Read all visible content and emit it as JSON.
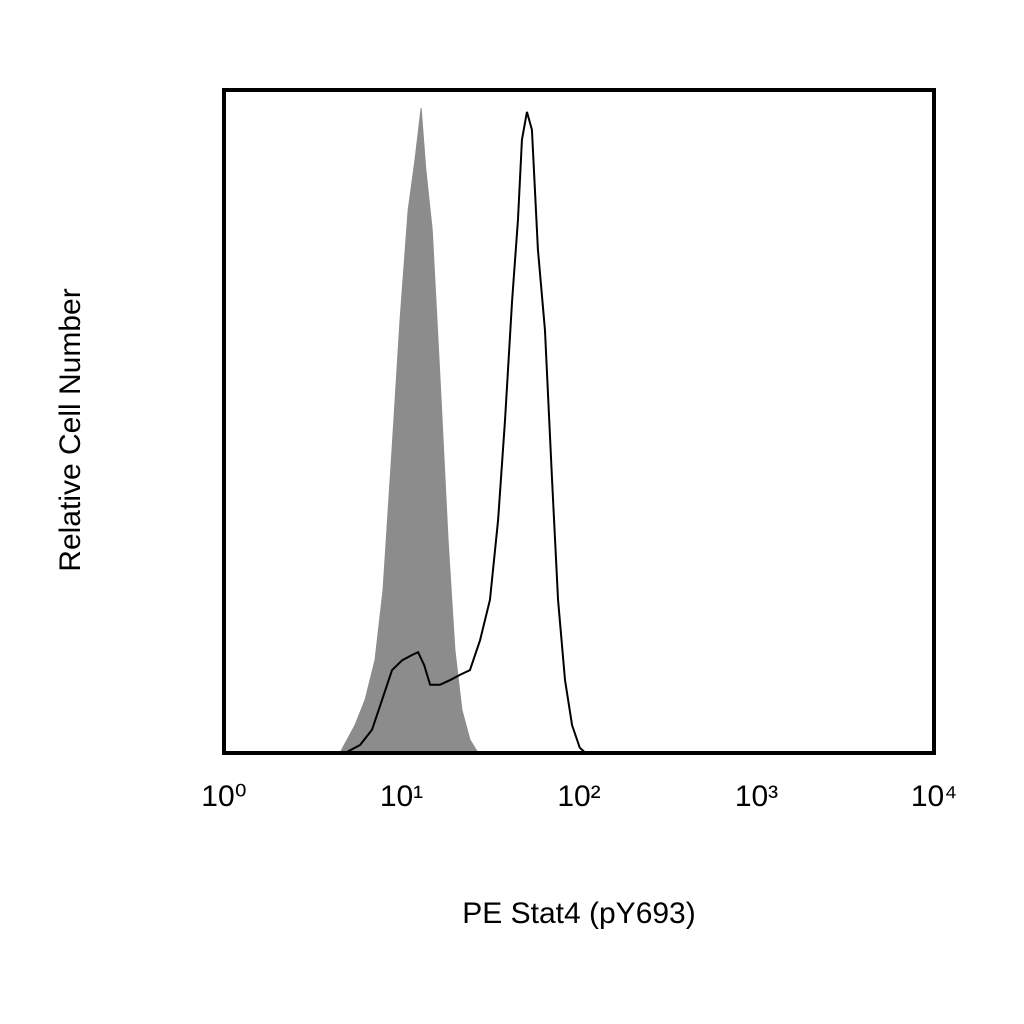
{
  "chart_data": {
    "type": "area",
    "xlabel": "PE Stat4 (pY693)",
    "ylabel": "Relative Cell Number",
    "xscale": "log",
    "xlim": [
      1,
      10000
    ],
    "xticks": [
      {
        "value": 1,
        "label": "10⁰"
      },
      {
        "value": 10,
        "label": "10¹"
      },
      {
        "value": 100,
        "label": "10²"
      },
      {
        "value": 1000,
        "label": "10³"
      },
      {
        "value": 10000,
        "label": "10⁴"
      }
    ],
    "ylim": [
      0,
      100
    ],
    "series": [
      {
        "color": "#8c8c8c",
        "filled": true,
        "x": [
          4.5,
          5.47,
          6.23,
          7.09,
          7.87,
          8.84,
          9.81,
          10.9,
          11.9,
          12.9,
          13.7,
          14.9,
          16.5,
          18.3,
          20.0,
          21.9,
          24.3,
          27.0
        ],
        "values": [
          0,
          4.2,
          8.0,
          14.0,
          24.6,
          45.7,
          65.3,
          81.9,
          89.4,
          97.3,
          88.1,
          78.9,
          56.3,
          32.1,
          15.5,
          6.5,
          2.0,
          0
        ]
      },
      {
        "color": "#000000",
        "filled": false,
        "x": [
          4.8,
          5.84,
          6.82,
          7.77,
          8.84,
          10.1,
          11.5,
          12.4,
          13.4,
          14.5,
          16.5,
          18.8,
          21.4,
          24.3,
          27.7,
          31.5,
          35.0,
          38.3,
          42.0,
          45.3,
          47.7,
          50.9,
          54.3,
          58.7,
          64.3,
          70.5,
          76.2,
          83.4,
          91.4,
          101,
          109
        ],
        "values": [
          0,
          1.2,
          3.5,
          8.0,
          12.5,
          14.0,
          14.8,
          15.2,
          13.3,
          10.3,
          10.3,
          11.0,
          11.8,
          12.5,
          17.0,
          23.1,
          35.1,
          50.2,
          68.3,
          80.4,
          92.5,
          96.7,
          94.0,
          75.9,
          63.8,
          41.2,
          23.1,
          11.0,
          4.2,
          0.8,
          0
        ]
      }
    ]
  }
}
